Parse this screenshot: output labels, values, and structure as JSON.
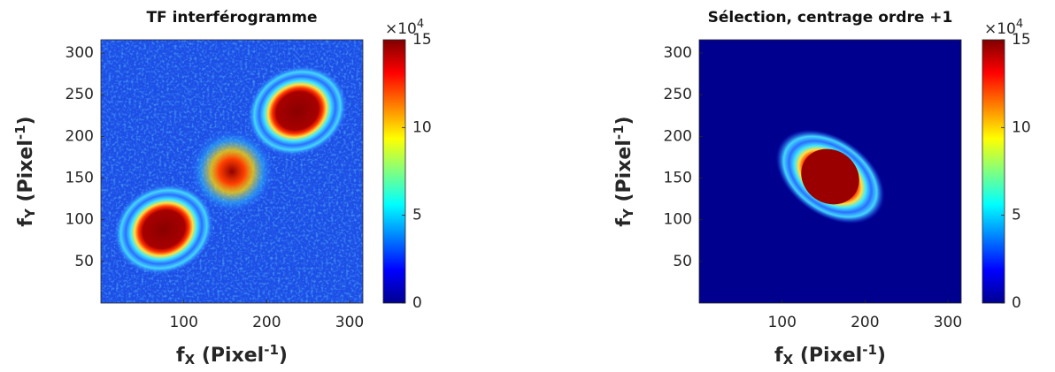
{
  "chart_data": [
    {
      "type": "heatmap",
      "title": "TF interférogramme",
      "xlabel": [
        "f",
        "X",
        " (Pixel",
        "-1",
        ")"
      ],
      "ylabel": [
        "f",
        "Y",
        " (Pixel",
        "-1",
        ")"
      ],
      "xlim": [
        0,
        316
      ],
      "ylim": [
        0,
        316
      ],
      "xticks": [
        100,
        200,
        300
      ],
      "yticks": [
        50,
        100,
        150,
        200,
        250,
        300
      ],
      "background": "#1d4ee6",
      "noise": true,
      "colormap": [
        "#00008f",
        "#0000ff",
        "#0080ff",
        "#00ffff",
        "#80ff80",
        "#ffff00",
        "#ff8000",
        "#ff0000",
        "#800000"
      ],
      "clim": [
        0,
        15
      ],
      "cticks": [
        0,
        5,
        10,
        15
      ],
      "colorbar_exponent": [
        "×10",
        "4"
      ]
    },
    {
      "type": "heatmap",
      "title": "Sélection, centrage ordre +1",
      "xlabel": [
        "f",
        "X",
        " (Pixel",
        "-1",
        ")"
      ],
      "ylabel": [
        "f",
        "Y",
        " (Pixel",
        "-1",
        ")"
      ],
      "xlim": [
        0,
        316
      ],
      "ylim": [
        0,
        316
      ],
      "xticks": [
        100,
        200,
        300
      ],
      "yticks": [
        50,
        100,
        150,
        200,
        250,
        300
      ],
      "background": "#00008f",
      "noise": false,
      "colormap": [
        "#00008f",
        "#0000ff",
        "#0080ff",
        "#00ffff",
        "#80ff80",
        "#ffff00",
        "#ff8000",
        "#ff0000",
        "#800000"
      ],
      "clim": [
        0,
        15
      ],
      "cticks": [
        0,
        5,
        10,
        15
      ],
      "colorbar_exponent": [
        "×10",
        "4"
      ]
    }
  ]
}
